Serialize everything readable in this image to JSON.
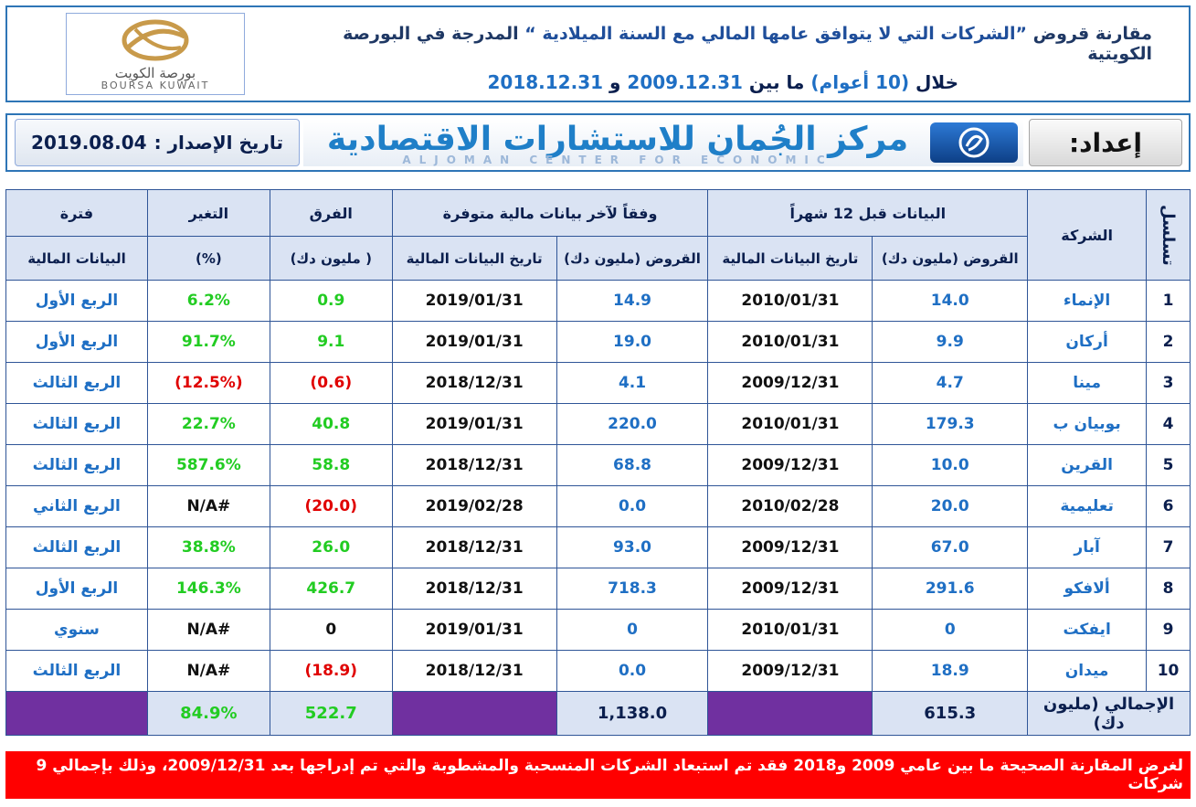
{
  "header": {
    "title_part1": "مقارنة قروض",
    "title_quoted": "”الشركات التي لا يتوافق عامها المالي مع السنة الميلادية “",
    "title_part2": "المدرجة في البورصة الكويتية",
    "subtitle_part1": "خلال",
    "subtitle_years": "(10 أعوام)",
    "subtitle_part2": "ما بين",
    "subtitle_date1": "2009.12.31",
    "subtitle_and": "و",
    "subtitle_date2": "2018.12.31",
    "logo_ar": "بورصة الكويت",
    "logo_en": "BOURSA KUWAIT"
  },
  "banner": {
    "issue_label": "تاريخ الإصدار :",
    "issue_date": "2019.08.04",
    "brand_ar": "مركز الجُمان للاستشارات الاقتصادية",
    "brand_en": "ALJOMAN CENTER FOR ECONOMIC CONSULTANCY",
    "prepared_label": "إعداد:"
  },
  "table": {
    "headers": {
      "serial": "تسلسل",
      "company": "الشركة",
      "group_prev": "البيانات قبل 12 شهراً",
      "group_latest": "وفقاً لآخر بيانات مالية متوفرة",
      "loans": "القروض (مليون دك)",
      "fin_date": "تاريخ البيانات المالية",
      "diff_line1": "الفرق",
      "diff_line2": "( مليون دك)",
      "change_line1": "التغير",
      "change_line2": "(%)",
      "period_line1": "فترة",
      "period_line2": "البيانات المالية"
    },
    "rows": [
      {
        "n": "1",
        "company": "الإنماء",
        "prev_loans": "14.0",
        "prev_date": "2010/01/31",
        "new_loans": "14.9",
        "new_date": "2019/01/31",
        "diff": "0.9",
        "change": "6.2%",
        "period": "الربع الأول"
      },
      {
        "n": "2",
        "company": "أركان",
        "prev_loans": "9.9",
        "prev_date": "2010/01/31",
        "new_loans": "19.0",
        "new_date": "2019/01/31",
        "diff": "9.1",
        "change": "91.7%",
        "period": "الربع الأول"
      },
      {
        "n": "3",
        "company": "مينا",
        "prev_loans": "4.7",
        "prev_date": "2009/12/31",
        "new_loans": "4.1",
        "new_date": "2018/12/31",
        "diff": "(0.6)",
        "change": "(12.5%)",
        "period": "الربع الثالث"
      },
      {
        "n": "4",
        "company": "بوبيان ب",
        "prev_loans": "179.3",
        "prev_date": "2010/01/31",
        "new_loans": "220.0",
        "new_date": "2019/01/31",
        "diff": "40.8",
        "change": "22.7%",
        "period": "الربع الثالث"
      },
      {
        "n": "5",
        "company": "القرين",
        "prev_loans": "10.0",
        "prev_date": "2009/12/31",
        "new_loans": "68.8",
        "new_date": "2018/12/31",
        "diff": "58.8",
        "change": "587.6%",
        "period": "الربع الثالث"
      },
      {
        "n": "6",
        "company": "تعليمية",
        "prev_loans": "20.0",
        "prev_date": "2010/02/28",
        "new_loans": "0.0",
        "new_date": "2019/02/28",
        "diff": "(20.0)",
        "change": "#N/A",
        "period": "الربع الثاني"
      },
      {
        "n": "7",
        "company": "آبار",
        "prev_loans": "67.0",
        "prev_date": "2009/12/31",
        "new_loans": "93.0",
        "new_date": "2018/12/31",
        "diff": "26.0",
        "change": "38.8%",
        "period": "الربع الثالث"
      },
      {
        "n": "8",
        "company": "ألافكو",
        "prev_loans": "291.6",
        "prev_date": "2009/12/31",
        "new_loans": "718.3",
        "new_date": "2018/12/31",
        "diff": "426.7",
        "change": "146.3%",
        "period": "الربع الأول"
      },
      {
        "n": "9",
        "company": "ايفكت",
        "prev_loans": "0",
        "prev_date": "2010/01/31",
        "new_loans": "0",
        "new_date": "2019/01/31",
        "diff": "0",
        "change": "#N/A",
        "period": "سنوي"
      },
      {
        "n": "10",
        "company": "ميدان",
        "prev_loans": "18.9",
        "prev_date": "2009/12/31",
        "new_loans": "0.0",
        "new_date": "2018/12/31",
        "diff": "(18.9)",
        "change": "#N/A",
        "period": "الربع الثالث"
      }
    ],
    "total": {
      "label": "الإجمالي (مليون دك)",
      "prev_loans": "615.3",
      "new_loans": "1,138.0",
      "diff": "522.7",
      "change": "84.9%"
    }
  },
  "footnote": "لغرض المقارنة الصحيحة ما بين عامي 2009 و2018 فقد تم استبعاد الشركات المنسحبة والمشطوبة والتي تم إدراجها بعد 2009/12/31، وذلك بإجمالي 9 شركات",
  "colors": {
    "positive": "#22cc22",
    "negative": "#e00000",
    "header_fill": "#dae3f3",
    "total_blank": "#7030a0",
    "footnote_bg": "#ff0000",
    "accent_blue": "#1f6fc4"
  }
}
